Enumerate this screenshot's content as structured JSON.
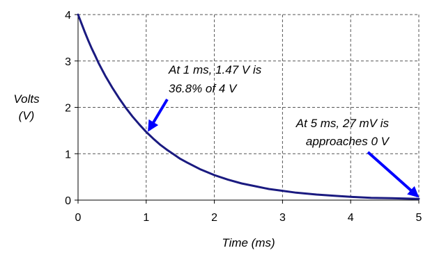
{
  "chart_data": {
    "type": "line",
    "xlabel": "Time (ms)",
    "ylabel_lines": [
      "Volts",
      "(V)"
    ],
    "xlim": [
      0,
      5
    ],
    "ylim": [
      0,
      4
    ],
    "x_ticks": [
      "0",
      "1",
      "2",
      "3",
      "4",
      "5"
    ],
    "y_ticks": [
      "0",
      "1",
      "2",
      "3",
      "4"
    ],
    "grid": true,
    "series": [
      {
        "color": "#1a1a80",
        "x": [
          0,
          0.05,
          0.1,
          0.15,
          0.2,
          0.25,
          0.3,
          0.35,
          0.4,
          0.5,
          0.6,
          0.7,
          0.8,
          0.9,
          1.0,
          1.1,
          1.2,
          1.3,
          1.4,
          1.5,
          1.6,
          1.8,
          2.0,
          2.2,
          2.4,
          2.6,
          2.8,
          3.0,
          3.2,
          3.5,
          3.8,
          4.0,
          4.3,
          4.6,
          5.0
        ],
        "y": [
          4.0,
          3.81,
          3.62,
          3.44,
          3.27,
          3.12,
          2.96,
          2.82,
          2.68,
          2.43,
          2.2,
          1.99,
          1.8,
          1.63,
          1.47,
          1.33,
          1.2,
          1.09,
          0.99,
          0.89,
          0.81,
          0.66,
          0.54,
          0.44,
          0.36,
          0.3,
          0.24,
          0.2,
          0.16,
          0.12,
          0.09,
          0.07,
          0.05,
          0.04,
          0.027
        ]
      }
    ],
    "annotations": [
      {
        "lines": [
          "At 1 ms, 1.47 V is",
          "36.8% of 4 V"
        ],
        "arrow_to": [
          1.0,
          1.47
        ],
        "color": "#0000ff"
      },
      {
        "lines": [
          "At 5 ms, 27 mV is",
          "approaches 0 V"
        ],
        "arrow_to": [
          5.0,
          0.027
        ],
        "color": "#0000ff"
      }
    ]
  }
}
